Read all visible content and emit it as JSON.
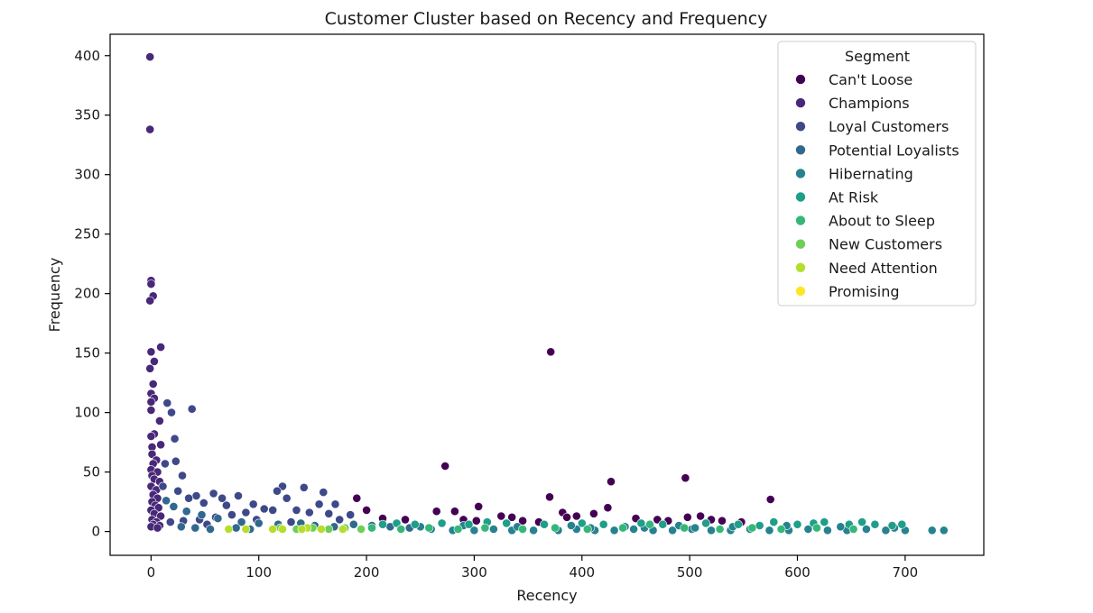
{
  "chart_data": {
    "type": "scatter",
    "title": "Customer Cluster based on Recency and Frequency",
    "xlabel": "Recency",
    "ylabel": "Frequency",
    "xlim": [
      -38,
      773
    ],
    "ylim": [
      -20,
      418
    ],
    "x_ticks": [
      0,
      100,
      200,
      300,
      400,
      500,
      600,
      700
    ],
    "y_ticks": [
      0,
      50,
      100,
      150,
      200,
      250,
      300,
      350,
      400
    ],
    "grid": false,
    "legend": {
      "title": "Segment",
      "position": "top-right",
      "entries": [
        {
          "label": "Can't Loose",
          "color": "#440154"
        },
        {
          "label": "Champions",
          "color": "#482878"
        },
        {
          "label": "Loyal Customers",
          "color": "#3e4989"
        },
        {
          "label": "Potential Loyalists",
          "color": "#31688e"
        },
        {
          "label": "Hibernating",
          "color": "#26828e"
        },
        {
          "label": "At Risk",
          "color": "#1f9e89"
        },
        {
          "label": "About to Sleep",
          "color": "#35b779"
        },
        {
          "label": "New Customers",
          "color": "#6ece58"
        },
        {
          "label": "Need Attention",
          "color": "#b5de2b"
        },
        {
          "label": "Promising",
          "color": "#fde725"
        }
      ]
    },
    "series": [
      {
        "name": "Can't Loose",
        "color": "#440154",
        "points": [
          [
            371,
            151
          ],
          [
            273,
            55
          ],
          [
            427,
            42
          ],
          [
            496,
            45
          ],
          [
            575,
            27
          ],
          [
            370,
            29
          ],
          [
            191,
            28
          ],
          [
            304,
            21
          ],
          [
            424,
            20
          ],
          [
            200,
            18
          ],
          [
            265,
            17
          ],
          [
            282,
            17
          ],
          [
            382,
            16
          ],
          [
            411,
            15
          ],
          [
            325,
            13
          ],
          [
            335,
            12
          ],
          [
            386,
            12
          ],
          [
            395,
            13
          ],
          [
            450,
            11
          ],
          [
            470,
            10
          ],
          [
            498,
            12
          ],
          [
            510,
            13
          ],
          [
            530,
            9
          ],
          [
            548,
            8
          ],
          [
            236,
            10
          ],
          [
            215,
            11
          ],
          [
            302,
            9
          ],
          [
            360,
            8
          ],
          [
            290,
            10
          ],
          [
            345,
            9
          ],
          [
            480,
            9
          ],
          [
            520,
            10
          ]
        ]
      },
      {
        "name": "Champions",
        "color": "#482878",
        "points": [
          [
            -1,
            399
          ],
          [
            -1,
            338
          ],
          [
            0,
            211
          ],
          [
            0,
            208
          ],
          [
            2,
            198
          ],
          [
            -1,
            194
          ],
          [
            9,
            155
          ],
          [
            0,
            151
          ],
          [
            3,
            143
          ],
          [
            -1,
            137
          ],
          [
            2,
            124
          ],
          [
            0,
            116
          ],
          [
            3,
            112
          ],
          [
            0,
            109
          ],
          [
            0,
            102
          ],
          [
            8,
            93
          ],
          [
            3,
            82
          ],
          [
            0,
            80
          ],
          [
            1,
            71
          ],
          [
            9,
            73
          ],
          [
            1,
            65
          ],
          [
            5,
            60
          ],
          [
            2,
            57
          ],
          [
            0,
            52
          ],
          [
            6,
            50
          ],
          [
            1,
            47
          ],
          [
            3,
            44
          ],
          [
            8,
            42
          ],
          [
            0,
            38
          ],
          [
            5,
            35
          ],
          [
            2,
            31
          ],
          [
            6,
            28
          ],
          [
            1,
            25
          ],
          [
            4,
            22
          ],
          [
            7,
            20
          ],
          [
            0,
            18
          ],
          [
            3,
            15
          ],
          [
            9,
            13
          ],
          [
            1,
            10
          ],
          [
            5,
            8
          ],
          [
            2,
            6
          ],
          [
            8,
            5
          ],
          [
            0,
            4
          ],
          [
            6,
            3
          ]
        ]
      },
      {
        "name": "Loyal Customers",
        "color": "#3e4989",
        "points": [
          [
            38,
            103
          ],
          [
            15,
            108
          ],
          [
            19,
            100
          ],
          [
            22,
            78
          ],
          [
            13,
            57
          ],
          [
            23,
            59
          ],
          [
            29,
            47
          ],
          [
            11,
            38
          ],
          [
            25,
            34
          ],
          [
            42,
            30
          ],
          [
            35,
            28
          ],
          [
            58,
            32
          ],
          [
            66,
            28
          ],
          [
            81,
            30
          ],
          [
            49,
            24
          ],
          [
            70,
            22
          ],
          [
            95,
            23
          ],
          [
            122,
            38
          ],
          [
            142,
            37
          ],
          [
            160,
            33
          ],
          [
            117,
            34
          ],
          [
            126,
            28
          ],
          [
            156,
            23
          ],
          [
            171,
            23
          ],
          [
            105,
            19
          ],
          [
            113,
            18
          ],
          [
            135,
            18
          ],
          [
            147,
            16
          ],
          [
            165,
            15
          ],
          [
            185,
            14
          ],
          [
            88,
            16
          ],
          [
            75,
            14
          ],
          [
            60,
            12
          ],
          [
            45,
            10
          ],
          [
            30,
            9
          ],
          [
            18,
            8
          ],
          [
            52,
            6
          ],
          [
            98,
            10
          ],
          [
            130,
            8
          ],
          [
            175,
            10
          ]
        ]
      },
      {
        "name": "Potential Loyalists",
        "color": "#31688e",
        "points": [
          [
            14,
            26
          ],
          [
            21,
            21
          ],
          [
            33,
            17
          ],
          [
            47,
            14
          ],
          [
            62,
            11
          ],
          [
            84,
            8
          ],
          [
            100,
            7
          ],
          [
            118,
            6
          ],
          [
            139,
            7
          ],
          [
            152,
            5
          ],
          [
            170,
            4
          ],
          [
            188,
            6
          ],
          [
            205,
            5
          ],
          [
            222,
            4
          ],
          [
            240,
            3
          ],
          [
            28,
            4
          ],
          [
            41,
            3
          ],
          [
            55,
            2
          ],
          [
            79,
            3
          ],
          [
            92,
            2
          ]
        ]
      },
      {
        "name": "Hibernating",
        "color": "#26828e",
        "points": [
          [
            260,
            2
          ],
          [
            280,
            1
          ],
          [
            300,
            1
          ],
          [
            318,
            2
          ],
          [
            335,
            1
          ],
          [
            378,
            1
          ],
          [
            395,
            2
          ],
          [
            412,
            1
          ],
          [
            430,
            1
          ],
          [
            448,
            2
          ],
          [
            466,
            1
          ],
          [
            484,
            1
          ],
          [
            502,
            2
          ],
          [
            520,
            1
          ],
          [
            538,
            1
          ],
          [
            556,
            2
          ],
          [
            574,
            1
          ],
          [
            592,
            1
          ],
          [
            610,
            2
          ],
          [
            628,
            1
          ],
          [
            646,
            1
          ],
          [
            664,
            2
          ],
          [
            682,
            1
          ],
          [
            700,
            1
          ],
          [
            725,
            1
          ],
          [
            736,
            1
          ],
          [
            250,
            4
          ],
          [
            290,
            5
          ],
          [
            340,
            4
          ],
          [
            390,
            5
          ],
          [
            440,
            4
          ],
          [
            490,
            5
          ],
          [
            540,
            4
          ],
          [
            590,
            5
          ],
          [
            640,
            4
          ],
          [
            690,
            3
          ],
          [
            355,
            1
          ],
          [
            408,
            3
          ],
          [
            458,
            3
          ],
          [
            505,
            3
          ]
        ]
      },
      {
        "name": "At Risk",
        "color": "#1f9e89",
        "points": [
          [
            215,
            6
          ],
          [
            228,
            7
          ],
          [
            245,
            6
          ],
          [
            270,
            7
          ],
          [
            295,
            6
          ],
          [
            312,
            8
          ],
          [
            330,
            7
          ],
          [
            365,
            6
          ],
          [
            400,
            7
          ],
          [
            420,
            6
          ],
          [
            455,
            7
          ],
          [
            475,
            6
          ],
          [
            515,
            7
          ],
          [
            545,
            6
          ],
          [
            565,
            5
          ],
          [
            578,
            8
          ],
          [
            600,
            6
          ],
          [
            615,
            7
          ],
          [
            625,
            8
          ],
          [
            648,
            6
          ],
          [
            660,
            8
          ],
          [
            672,
            6
          ],
          [
            688,
            5
          ],
          [
            697,
            6
          ]
        ]
      },
      {
        "name": "About to Sleep",
        "color": "#35b779",
        "points": [
          [
            205,
            3
          ],
          [
            232,
            2
          ],
          [
            258,
            3
          ],
          [
            285,
            2
          ],
          [
            310,
            3
          ],
          [
            345,
            2
          ],
          [
            375,
            3
          ],
          [
            405,
            2
          ],
          [
            438,
            3
          ],
          [
            463,
            6
          ],
          [
            495,
            3
          ],
          [
            528,
            2
          ],
          [
            558,
            3
          ],
          [
            585,
            2
          ],
          [
            618,
            3
          ],
          [
            652,
            2
          ]
        ]
      },
      {
        "name": "New Customers",
        "color": "#6ece58",
        "points": [
          [
            120,
            3
          ],
          [
            135,
            2
          ],
          [
            150,
            3
          ],
          [
            165,
            2
          ],
          [
            180,
            3
          ],
          [
            195,
            2
          ]
        ]
      },
      {
        "name": "Need Attention",
        "color": "#b5de2b",
        "points": [
          [
            72,
            2
          ],
          [
            88,
            2
          ],
          [
            113,
            2
          ],
          [
            122,
            2
          ],
          [
            145,
            3
          ],
          [
            158,
            2
          ],
          [
            178,
            2
          ],
          [
            140,
            2
          ]
        ]
      },
      {
        "name": "Promising",
        "color": "#fde725",
        "points": []
      }
    ]
  }
}
